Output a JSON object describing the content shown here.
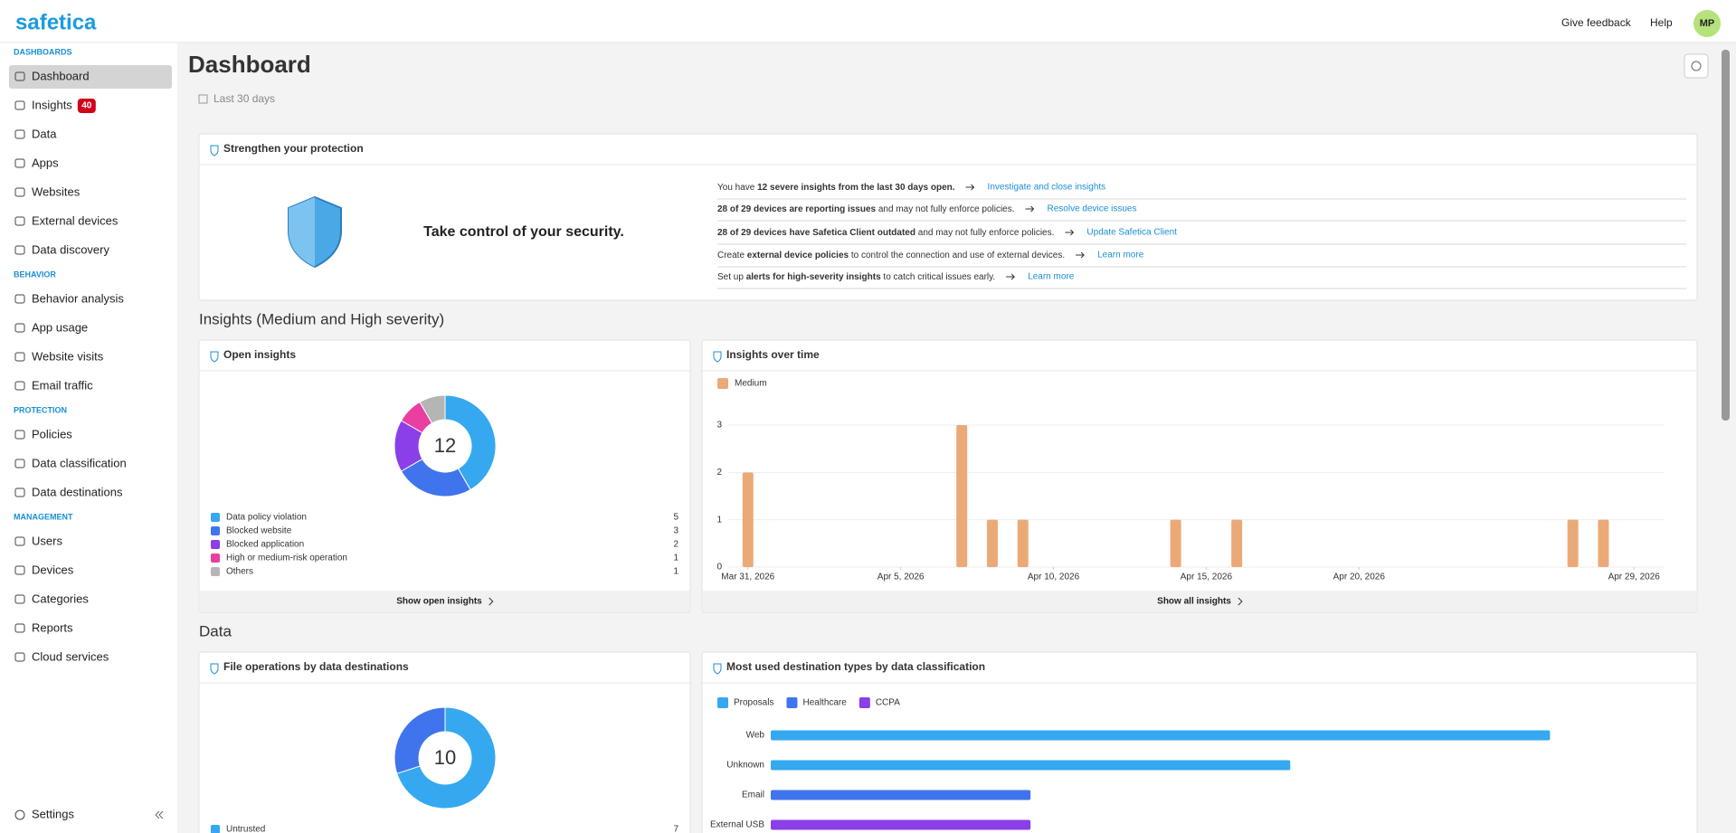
{
  "brand": "safetica",
  "header": {
    "feedback": "Give feedback",
    "help": "Help",
    "avatar": "MP"
  },
  "sidebar": {
    "sections": [
      {
        "title": "DASHBOARDS",
        "items": [
          {
            "label": "Dashboard",
            "active": true
          },
          {
            "label": "Insights",
            "badge": 40
          },
          {
            "label": "Data"
          },
          {
            "label": "Apps"
          },
          {
            "label": "Websites"
          },
          {
            "label": "External devices"
          },
          {
            "label": "Data discovery"
          }
        ]
      },
      {
        "title": "BEHAVIOR",
        "items": [
          {
            "label": "Behavior analysis"
          },
          {
            "label": "App usage"
          },
          {
            "label": "Website visits"
          },
          {
            "label": "Email traffic"
          }
        ]
      },
      {
        "title": "PROTECTION",
        "items": [
          {
            "label": "Policies"
          },
          {
            "label": "Data classification"
          },
          {
            "label": "Data destinations"
          }
        ]
      },
      {
        "title": "MANAGEMENT",
        "items": [
          {
            "label": "Users"
          },
          {
            "label": "Devices"
          },
          {
            "label": "Categories"
          },
          {
            "label": "Reports"
          },
          {
            "label": "Cloud services"
          }
        ]
      }
    ],
    "settings": "Settings"
  },
  "page": {
    "title": "Dashboard",
    "range": "Last 30 days"
  },
  "protection": {
    "title": "Strengthen your protection",
    "tagline": "Take control of your security.",
    "rows": [
      {
        "pre": "You have ",
        "bold": "12 severe insights from the last 30 days open.",
        "link": "Investigate and close insights"
      },
      {
        "bold": "28 of 29 devices are reporting issues",
        "post": " and may not fully enforce policies.",
        "link": "Resolve device issues"
      },
      {
        "bold": "28 of 29 devices have Safetica Client outdated",
        "post": " and may not fully enforce policies.",
        "link": "Update Safetica Client"
      },
      {
        "pre": "Create ",
        "bold": "external device policies",
        "post": " to control the connection and use of external devices.",
        "link": "Learn more"
      },
      {
        "pre": "Set up ",
        "bold": "alerts for high-severity insights",
        "post": " to catch critical issues early.",
        "link": "Learn more"
      }
    ]
  },
  "sections": {
    "insights": "Insights (Medium and High severity)",
    "data": "Data"
  },
  "footers": [
    "Show open insights",
    "Show all insights"
  ],
  "chart_data": [
    {
      "type": "donut",
      "title": "Open insights",
      "total": 12,
      "categories": [
        "Data policy violation",
        "Blocked website",
        "Blocked application",
        "High or medium-risk operation",
        "Others"
      ],
      "values": [
        5,
        3,
        2,
        1,
        1
      ],
      "colors": [
        "#35a8f0",
        "#3f74ec",
        "#8b3fe8",
        "#e83fa0",
        "#b5b5b5"
      ]
    },
    {
      "type": "bar",
      "title": "Insights over time",
      "x": [
        "2026-03-31",
        "2026-04-07",
        "2026-04-08",
        "2026-04-09",
        "2026-04-14",
        "2026-04-16",
        "2026-04-27",
        "2026-04-28"
      ],
      "series": [
        {
          "name": "Medium",
          "color": "#eca978",
          "values": [
            2,
            3,
            1,
            1,
            1,
            1,
            1,
            1
          ]
        }
      ],
      "xlim": [
        "2026-03-30",
        "2026-04-30"
      ],
      "xticks": [
        {
          "value": "2026-03-31",
          "label": "Mar 31, 2026"
        },
        {
          "value": "2026-04-05",
          "label": "Apr 5, 2026"
        },
        {
          "value": "2026-04-10",
          "label": "Apr 10, 2026"
        },
        {
          "value": "2026-04-15",
          "label": "Apr 15, 2026"
        },
        {
          "value": "2026-04-20",
          "label": "Apr 20, 2026"
        },
        {
          "value": "2026-04-29",
          "label": "Apr 29, 2026"
        }
      ],
      "ylim": [
        0,
        3
      ],
      "yticks": [
        0,
        1,
        2,
        3
      ],
      "grid": true
    },
    {
      "type": "donut",
      "title": "File operations by data destinations",
      "total": 10,
      "categories": [
        "Untrusted",
        null
      ],
      "values": [
        7,
        3
      ],
      "colors": [
        "#35a8f0",
        "#3f74ec"
      ]
    },
    {
      "type": "hbar",
      "title": "Most used destination types by data classification",
      "categories": [
        "Web",
        "Unknown",
        "Email",
        "External USB"
      ],
      "series": [
        {
          "name": "Proposals",
          "color": "#35a8f0",
          "values": [
            6,
            4,
            null,
            null
          ]
        },
        {
          "name": "Healthcare",
          "color": "#3f74ec",
          "values": [
            null,
            null,
            2,
            null
          ]
        },
        {
          "name": "CCPA",
          "color": "#8b3fe8",
          "values": [
            null,
            null,
            null,
            2
          ]
        }
      ],
      "xlim": [
        0,
        7
      ]
    }
  ]
}
